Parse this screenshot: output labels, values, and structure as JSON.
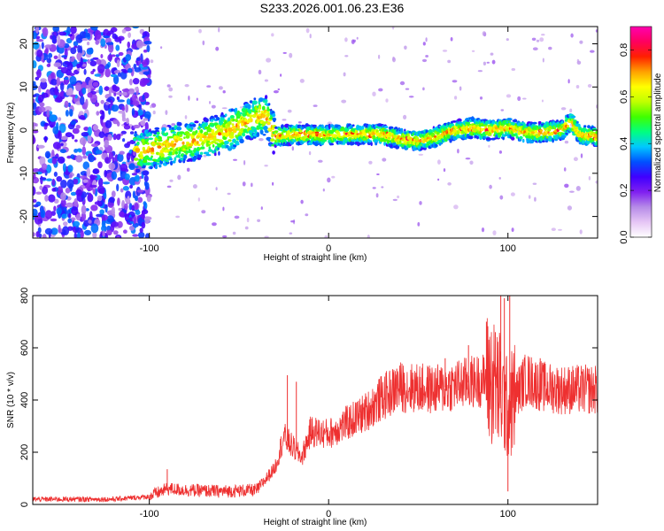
{
  "title": "S233.2026.001.06.23.E36",
  "chart_data": [
    {
      "type": "heatmap",
      "name": "spectrogram",
      "xlabel": "Height of straight line (km)",
      "ylabel": "Frequency (Hz)",
      "xlim": [
        -165,
        150
      ],
      "ylim": [
        -25,
        24
      ],
      "xticks": [
        -100,
        0,
        100
      ],
      "yticks": [
        -20,
        -10,
        0,
        10,
        20
      ],
      "ridge": {
        "x": [
          -105,
          -95,
          -85,
          -75,
          -65,
          -55,
          -45,
          -40,
          -35,
          -30,
          -20,
          -10,
          0,
          10,
          20,
          30,
          40,
          50,
          60,
          70,
          80,
          90,
          100,
          110,
          120,
          130,
          135,
          140,
          150
        ],
        "y": [
          -5,
          -4,
          -3,
          -2.5,
          -1.5,
          0,
          2,
          3,
          3.5,
          -1.5,
          -1,
          -1,
          -1.2,
          -1,
          -1,
          -1,
          -2,
          -2.5,
          -1.5,
          0,
          0.5,
          0,
          0.5,
          -0.5,
          -0.5,
          0,
          2,
          -1,
          -1.5
        ]
      },
      "colorbar": {
        "label": "Normalized spectral amplitude",
        "range": [
          0,
          0.9
        ],
        "ticks": [
          "0.0",
          "0.2",
          "0.4",
          "0.6",
          "0.8"
        ],
        "tick_values": [
          0,
          0.2,
          0.4,
          0.6,
          0.8
        ],
        "colors": [
          "#ffffff",
          "#e6c6f5",
          "#b68be8",
          "#8020f0",
          "#4000ff",
          "#0050ff",
          "#00c8ff",
          "#00ff80",
          "#40ff00",
          "#c0ff00",
          "#ffff00",
          "#ffa000",
          "#ff2000",
          "#ff0060",
          "#ff00b0"
        ]
      }
    },
    {
      "type": "line",
      "name": "snr",
      "xlabel": "Height of straight line (km)",
      "ylabel": "SNR (10 * v/v)",
      "xlim": [
        -165,
        150
      ],
      "ylim": [
        0,
        800
      ],
      "xticks": [
        -100,
        0,
        100
      ],
      "yticks": [
        0,
        200,
        400,
        600,
        800
      ],
      "color": "#ee3030",
      "envelope": {
        "x": [
          -165,
          -120,
          -100,
          -90,
          -80,
          -60,
          -40,
          -30,
          -25,
          -20,
          -15,
          -10,
          0,
          10,
          20,
          30,
          40,
          60,
          80,
          90,
          95,
          100,
          105,
          110,
          120,
          130,
          150
        ],
        "y": [
          20,
          20,
          30,
          60,
          55,
          50,
          55,
          140,
          260,
          220,
          180,
          280,
          270,
          310,
          350,
          410,
          450,
          440,
          470,
          480,
          440,
          360,
          430,
          480,
          450,
          440,
          440
        ]
      },
      "spikes": [
        {
          "x": -90,
          "y": 135
        },
        {
          "x": -23,
          "y": 495
        },
        {
          "x": -18,
          "y": 470
        },
        {
          "x": 38,
          "y": 520
        },
        {
          "x": 65,
          "y": 560
        },
        {
          "x": 78,
          "y": 610
        },
        {
          "x": 88,
          "y": 700
        },
        {
          "x": 93,
          "y": 660
        },
        {
          "x": 96,
          "y": 800
        },
        {
          "x": 98,
          "y": 790
        },
        {
          "x": 100,
          "y": 50
        },
        {
          "x": 101,
          "y": 800
        },
        {
          "x": 118,
          "y": 560
        },
        {
          "x": 145,
          "y": 500
        }
      ]
    }
  ]
}
